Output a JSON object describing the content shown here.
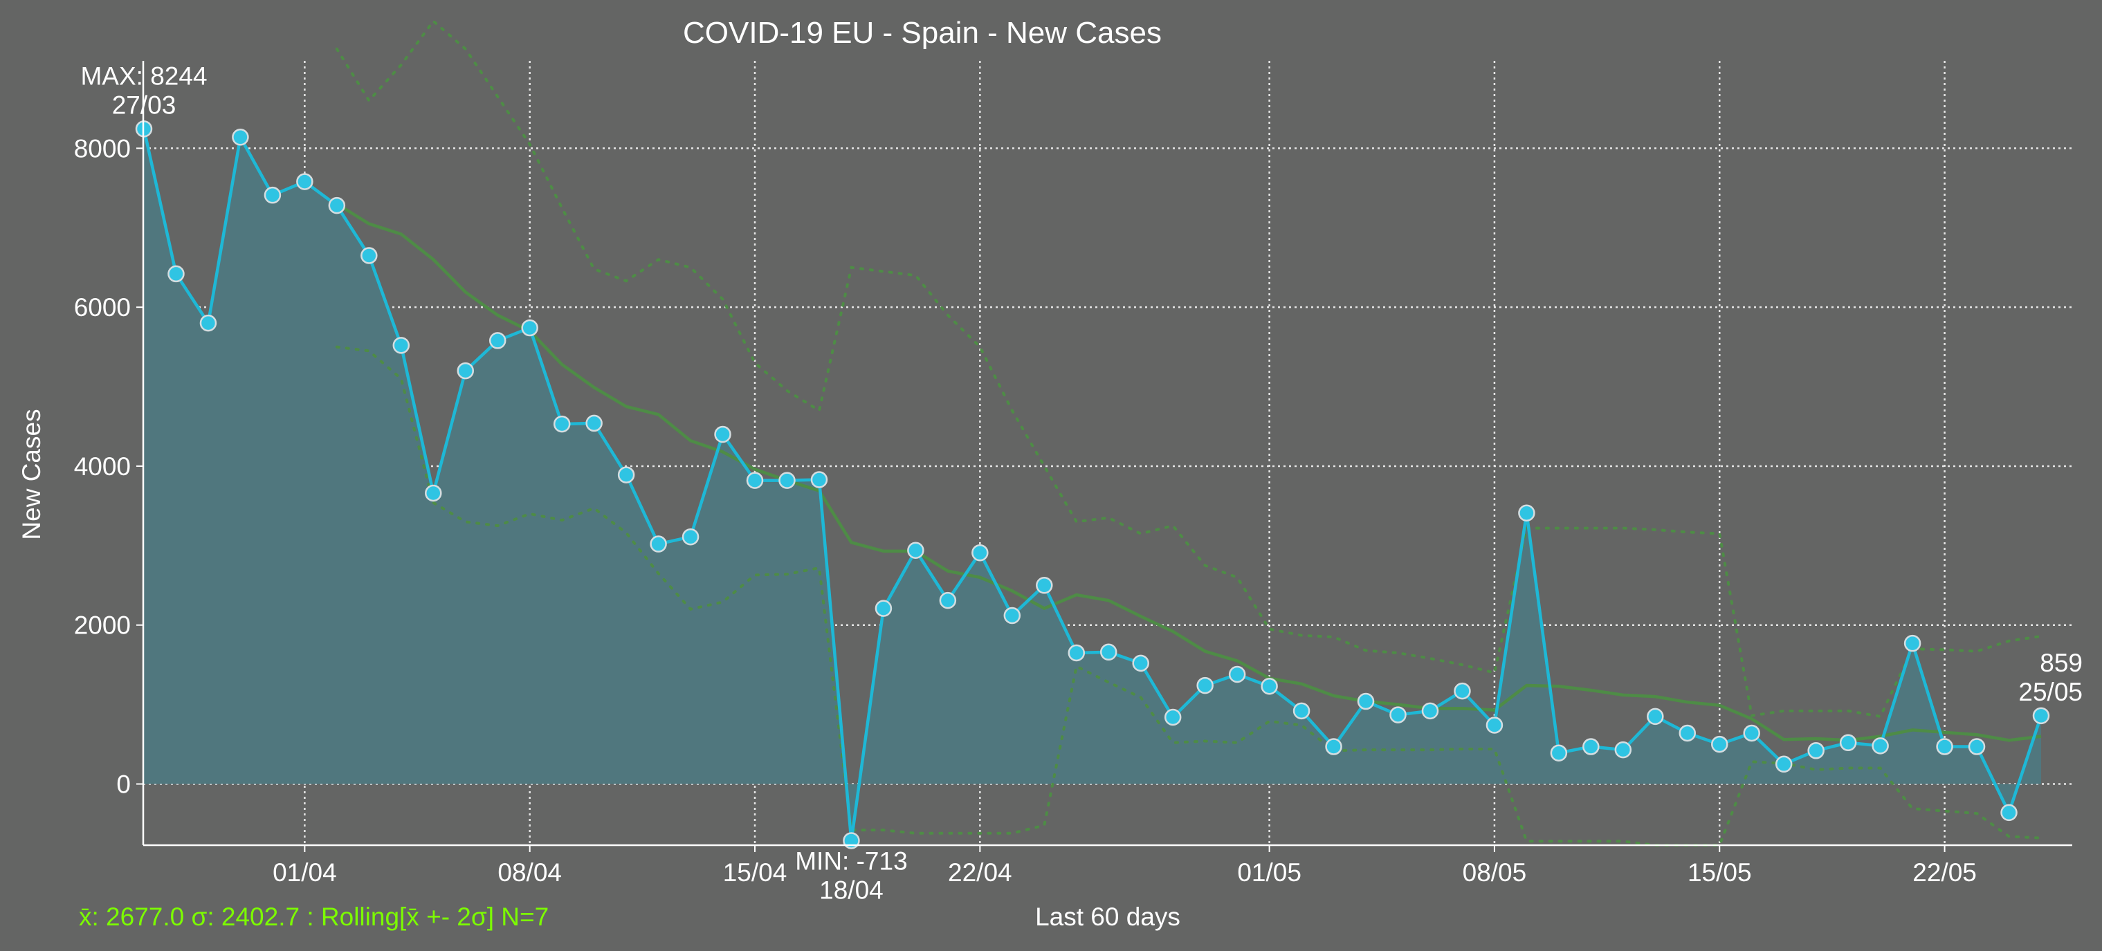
{
  "chart_data": {
    "type": "line",
    "title": "COVID-19 EU - Spain - New Cases",
    "xlabel": "Last 60 days",
    "ylabel": "New Cases",
    "stats_caption": "x̄: 2677.0 σ: 2402.7 : Rolling[x̄ +- 2σ] N=7",
    "x_tick_labels": [
      "01/04",
      "08/04",
      "15/04",
      "22/04",
      "01/05",
      "08/05",
      "15/05",
      "22/05"
    ],
    "x_tick_day_index": [
      5,
      12,
      19,
      26,
      35,
      42,
      49,
      56
    ],
    "y_ticks": [
      0,
      2000,
      4000,
      6000,
      8000
    ],
    "ylim": [
      -770,
      9100
    ],
    "grid": true,
    "dates": [
      "27/03",
      "28/03",
      "29/03",
      "30/03",
      "31/03",
      "01/04",
      "02/04",
      "03/04",
      "04/04",
      "05/04",
      "06/04",
      "07/04",
      "08/04",
      "09/04",
      "10/04",
      "11/04",
      "12/04",
      "13/04",
      "14/04",
      "15/04",
      "16/04",
      "17/04",
      "18/04",
      "19/04",
      "20/04",
      "21/04",
      "22/04",
      "23/04",
      "24/04",
      "25/04",
      "26/04",
      "27/04",
      "28/04",
      "29/04",
      "30/04",
      "01/05",
      "02/05",
      "03/05",
      "04/05",
      "05/05",
      "06/05",
      "07/05",
      "08/05",
      "09/05",
      "10/05",
      "11/05",
      "12/05",
      "13/05",
      "14/05",
      "15/05",
      "16/05",
      "17/05",
      "18/05",
      "19/05",
      "20/05",
      "21/05",
      "22/05",
      "23/05",
      "24/05",
      "25/05"
    ],
    "series": [
      {
        "values": [
          8244,
          6420,
          5800,
          8140,
          7410,
          7580,
          7280,
          6650,
          5520,
          3660,
          5200,
          5580,
          5740,
          4530,
          4540,
          3890,
          3020,
          3110,
          4400,
          3820,
          3820,
          3830,
          -713,
          2210,
          2940,
          2310,
          2910,
          2120,
          2500,
          1650,
          1660,
          1520,
          840,
          1240,
          1380,
          1230,
          920,
          470,
          1040,
          870,
          920,
          1170,
          740,
          3410,
          390,
          470,
          430,
          850,
          640,
          500,
          640,
          250,
          420,
          520,
          480,
          1770,
          470,
          470,
          -360,
          859
        ],
        "color": "#1eb8d6"
      }
    ],
    "rolling_mean": [
      null,
      null,
      null,
      null,
      null,
      null,
      7300,
      7050,
      6920,
      6600,
      6190,
      5900,
      5700,
      5280,
      4990,
      4750,
      4650,
      4320,
      4180,
      3960,
      3820,
      3690,
      3040,
      2930,
      2930,
      2680,
      2600,
      2430,
      2210,
      2380,
      2310,
      2110,
      1920,
      1670,
      1550,
      1330,
      1260,
      1110,
      1040,
      1000,
      950,
      950,
      930,
      1240,
      1230,
      1180,
      1120,
      1100,
      1030,
      990,
      820,
      560,
      570,
      550,
      600,
      680,
      650,
      620,
      550,
      600
    ],
    "rolling_upper": [
      null,
      null,
      null,
      null,
      null,
      null,
      9250,
      8600,
      9050,
      9600,
      9250,
      8650,
      8050,
      7250,
      6480,
      6330,
      6600,
      6500,
      6100,
      5300,
      4950,
      4700,
      6500,
      6450,
      6400,
      5900,
      5500,
      4700,
      4000,
      3300,
      3350,
      3150,
      3250,
      2750,
      2600,
      1950,
      1870,
      1850,
      1680,
      1650,
      1580,
      1500,
      1400,
      3220,
      3220,
      3220,
      3220,
      3200,
      3170,
      3150,
      860,
      920,
      920,
      920,
      850,
      1700,
      1690,
      1670,
      1800,
      1860
    ],
    "rolling_lower": [
      null,
      null,
      null,
      null,
      null,
      null,
      5500,
      5450,
      5100,
      3540,
      3300,
      3250,
      3400,
      3320,
      3470,
      3160,
      2650,
      2200,
      2290,
      2630,
      2640,
      2720,
      -580,
      -580,
      -620,
      -620,
      -620,
      -620,
      -520,
      1480,
      1280,
      1090,
      520,
      540,
      520,
      790,
      740,
      420,
      430,
      430,
      430,
      440,
      440,
      -720,
      -720,
      -720,
      -720,
      -770,
      -770,
      -770,
      280,
      260,
      180,
      200,
      200,
      -310,
      -340,
      -370,
      -660,
      -680
    ],
    "annotations": [
      {
        "text": "MAX: 8244",
        "sub": "27/03",
        "day_index": 0,
        "value": 8244,
        "side": "above"
      },
      {
        "text": "MIN: -713",
        "sub": "18/04",
        "day_index": 22,
        "value": -713,
        "side": "below"
      },
      {
        "text": "859",
        "sub": "25/05",
        "day_index": 59,
        "value": 859,
        "side": "above"
      }
    ],
    "colors": {
      "background": "#646564",
      "area_fill": "#50777e",
      "line": "#1eb8d6",
      "marker_face": "#2fc4e3",
      "marker_edge": "#d4dde0",
      "rolling": "#4e8c46",
      "stats_caption": "#7cfc00",
      "text": "#ffffff"
    }
  }
}
